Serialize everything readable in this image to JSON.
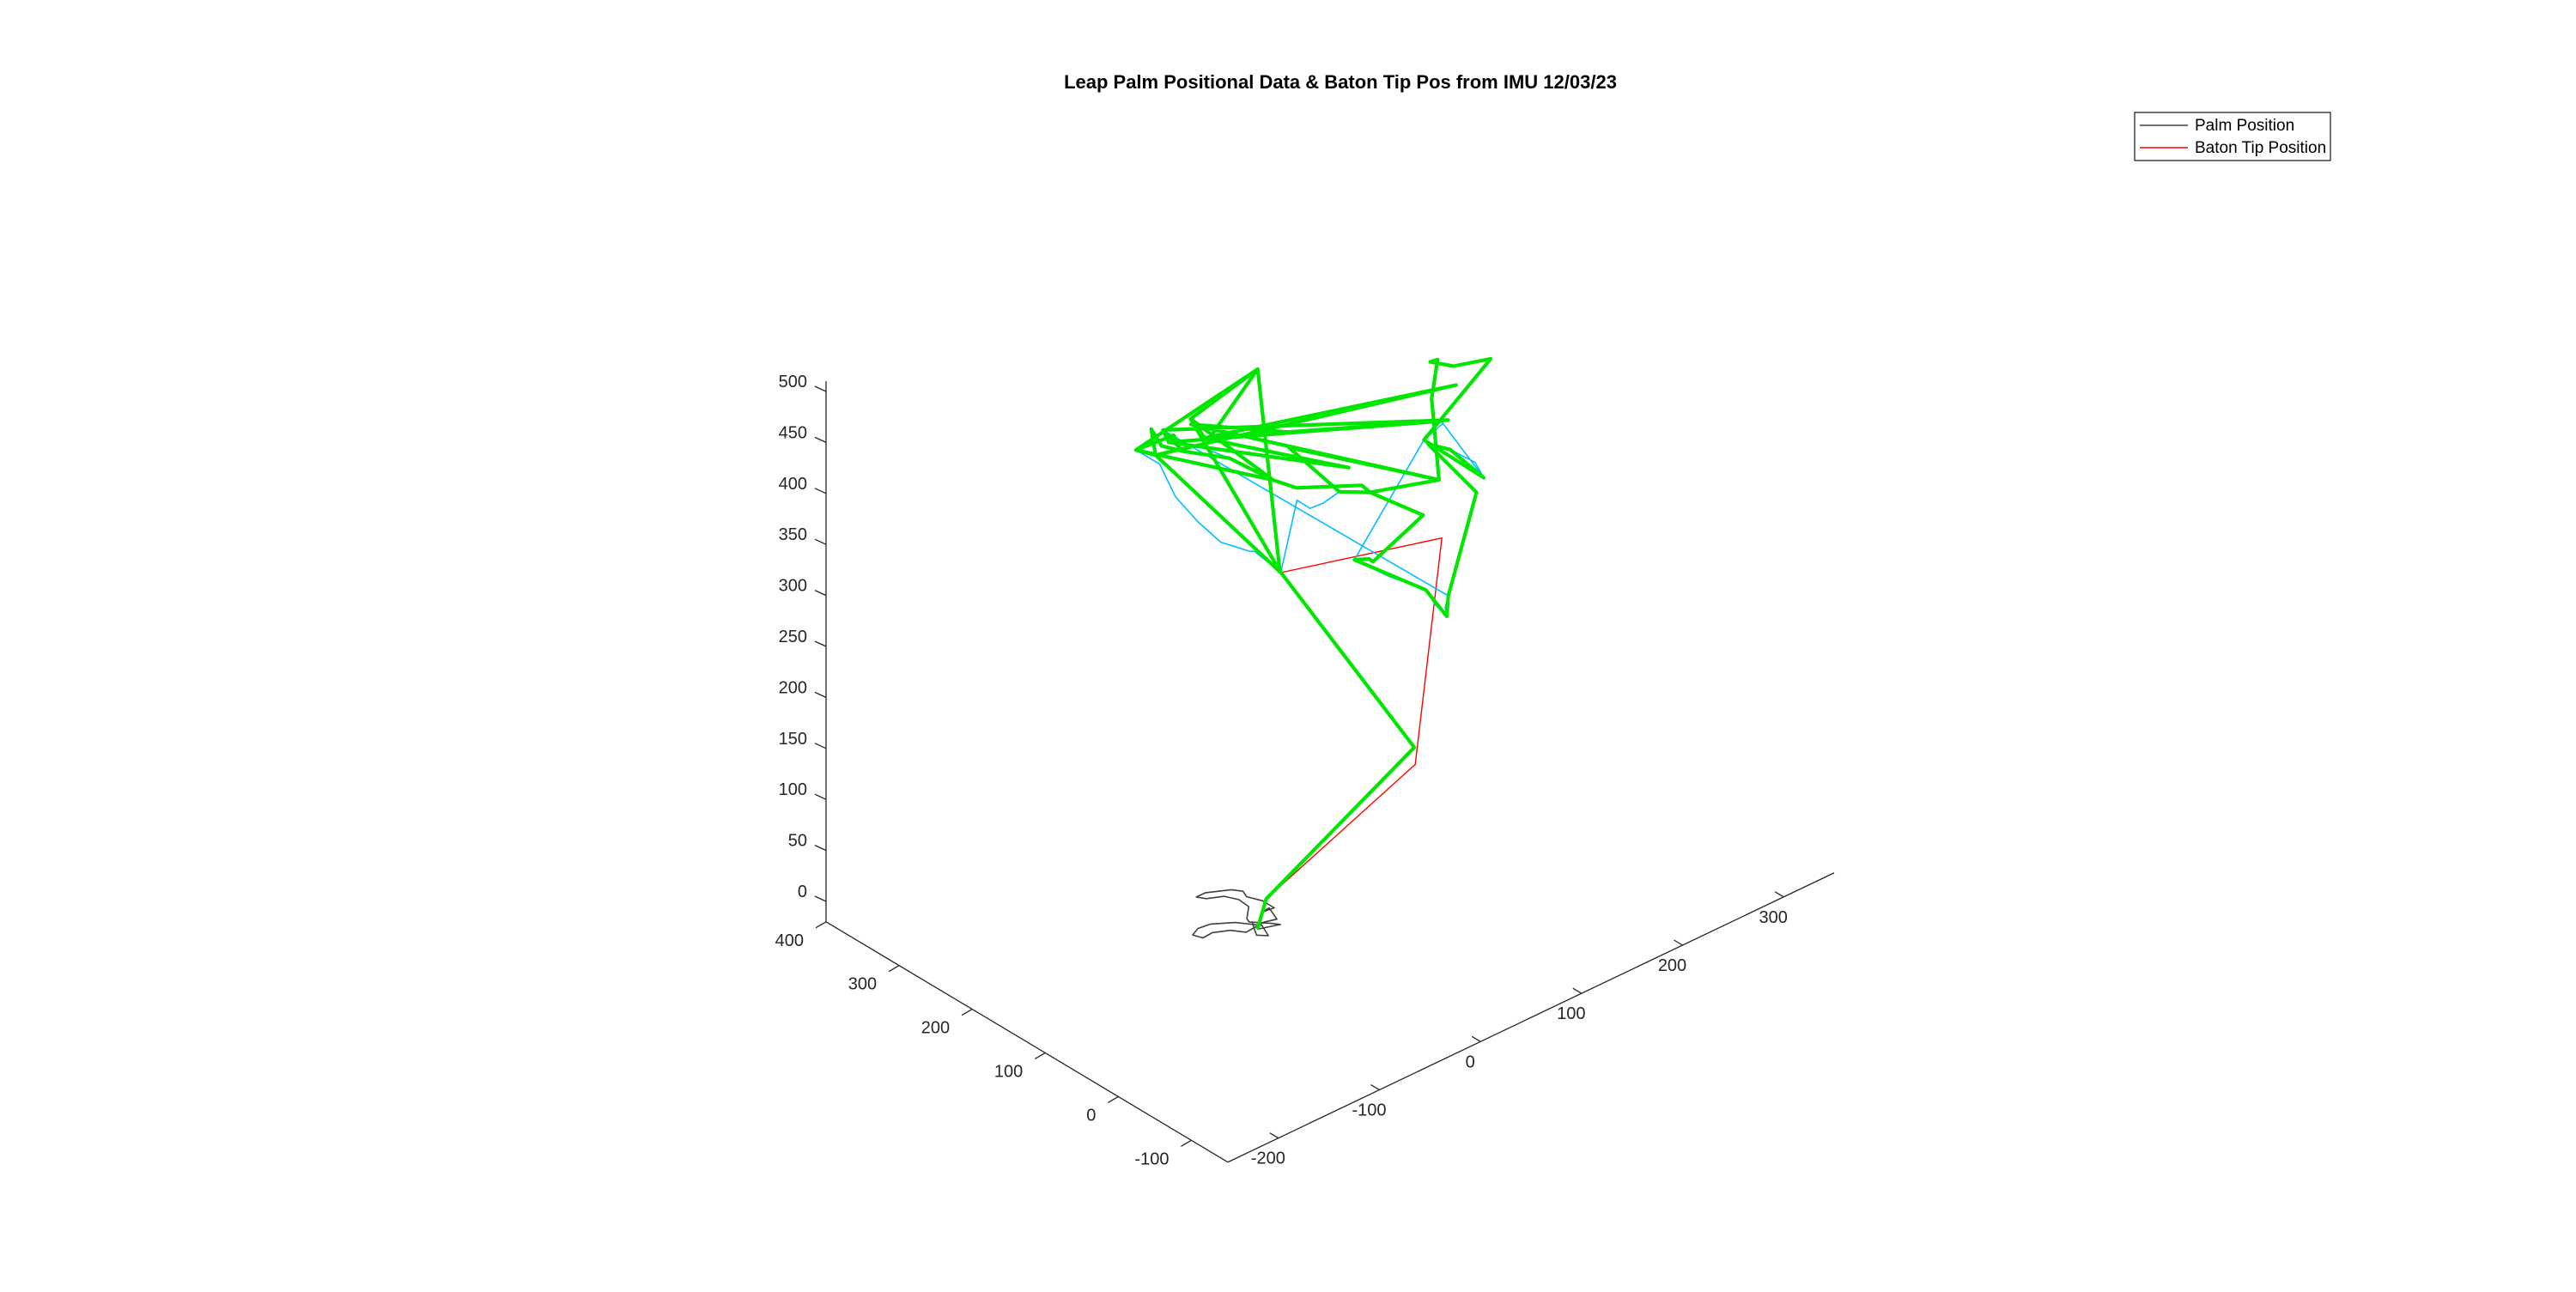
{
  "chart_data": {
    "type": "line",
    "title": "Leap Palm Positional Data & Baton Tip Pos from IMU 12/03/23",
    "xlabel": "",
    "ylabel": "",
    "zlabel": "",
    "legend": {
      "placement": "top-right",
      "entries": [
        {
          "name": "Palm Position",
          "color": "#404040"
        },
        {
          "name": "Baton Tip Position",
          "color": "#ff0000"
        }
      ]
    },
    "axes": {
      "x": {
        "range": [
          -250,
          350
        ],
        "ticks": [
          -200,
          -100,
          0,
          100,
          200,
          300
        ]
      },
      "y": {
        "range": [
          -150,
          400
        ],
        "ticks": [
          -100,
          0,
          100,
          200,
          300,
          400
        ]
      },
      "z": {
        "range": [
          -20,
          510
        ],
        "ticks": [
          0,
          50,
          100,
          150,
          200,
          250,
          300,
          350,
          400,
          450,
          500
        ]
      }
    },
    "grid": false,
    "series": [
      {
        "name": "Palm Position",
        "color": "#404040",
        "points": [
          [
            -36,
            113,
            2
          ],
          [
            -46,
            93,
            2
          ],
          [
            -40,
            85,
            2
          ],
          [
            -34,
            102,
            2
          ],
          [
            -46,
            122,
            2
          ],
          [
            -61,
            135,
            2
          ],
          [
            -72,
            137,
            2
          ],
          [
            -81,
            132,
            2
          ],
          [
            -78,
            122,
            2
          ],
          [
            -68,
            123,
            2
          ],
          [
            -56,
            115,
            2
          ],
          [
            -49,
            103,
            2
          ],
          [
            -30,
            105,
            2
          ],
          [
            -20,
            101,
            2
          ],
          [
            -14,
            120,
            2
          ],
          [
            -21,
            119,
            2
          ],
          [
            -11,
            117,
            2
          ],
          [
            -11,
            133,
            2
          ],
          [
            -16,
            148,
            2
          ],
          [
            -13,
            157,
            2
          ],
          [
            -18,
            166,
            2
          ],
          [
            -35,
            178,
            2
          ],
          [
            -44,
            178,
            2
          ],
          [
            -40,
            170,
            2
          ],
          [
            -28,
            162,
            2
          ],
          [
            -23,
            149,
            2
          ],
          [
            -24,
            134,
            2
          ],
          [
            -36,
            120,
            2
          ],
          [
            -38,
            114,
            2
          ],
          [
            -27,
            99,
            2
          ],
          [
            -23,
            92,
            2
          ],
          [
            -40,
            100,
            2
          ]
        ]
      },
      {
        "name": "Baton Tip Position",
        "color": "#ff0000",
        "points": [
          [
            -40,
            100,
            2
          ],
          [
            -27,
            106,
            23
          ],
          [
            54,
            14,
            156
          ],
          [
            63,
            -10,
            384
          ],
          [
            -19,
            97,
            343
          ],
          [
            -5,
            148,
            514
          ],
          [
            -36,
            197,
            459
          ],
          [
            -27,
            190,
            439
          ],
          [
            -42,
            164,
            456
          ],
          [
            54,
            105,
            408
          ],
          [
            -49,
            209,
            437
          ],
          [
            -38,
            232,
            434
          ],
          [
            -47,
            197,
            436
          ],
          [
            -36,
            220,
            433
          ],
          [
            -62,
            236,
            424
          ],
          [
            -54,
            220,
            422
          ],
          [
            -67,
            208,
            459
          ],
          [
            -77,
            180,
            459
          ],
          [
            -55,
            181,
            443
          ],
          [
            -33,
            148,
            440
          ],
          [
            -15,
            113,
            425
          ],
          [
            0,
            102,
            415
          ],
          [
            43,
            72,
            410
          ],
          [
            57,
            80,
            393
          ],
          [
            36,
            93,
            398
          ],
          [
            18,
            137,
            431
          ],
          [
            100,
            45,
            400
          ],
          [
            118,
            80,
            456
          ],
          [
            147,
            112,
            467
          ],
          [
            152,
            129,
            455
          ],
          [
            175,
            129,
            440
          ],
          [
            222,
            143,
            419
          ],
          [
            119,
            92,
            410
          ],
          [
            166,
            75,
            358
          ],
          [
            119,
            56,
            416
          ],
          [
            95,
            53,
            434
          ],
          [
            111,
            9,
            398
          ],
          [
            81,
            6,
            312
          ],
          [
            65,
            -14,
            308
          ],
          [
            58,
            5,
            329
          ],
          [
            22,
            53,
            355
          ],
          [
            30,
            44,
            356
          ],
          [
            39,
            51,
            346
          ],
          [
            85,
            46,
            372
          ],
          [
            57,
            80,
            393
          ],
          [
            100,
            45,
            400
          ]
        ]
      },
      {
        "name": "",
        "color": "#00e600",
        "points": [
          [
            -40,
            100,
            2
          ],
          [
            -27,
            106,
            23
          ],
          [
            56,
            18,
            170
          ],
          [
            -20,
            97,
            345
          ],
          [
            -5,
            148,
            514
          ],
          [
            -36,
            197,
            459
          ],
          [
            -27,
            190,
            439
          ],
          [
            -42,
            164,
            456
          ],
          [
            54,
            105,
            408
          ],
          [
            -49,
            209,
            437
          ],
          [
            -38,
            232,
            434
          ],
          [
            -47,
            197,
            436
          ],
          [
            -36,
            220,
            433
          ],
          [
            -62,
            236,
            424
          ],
          [
            -54,
            220,
            422
          ],
          [
            -67,
            208,
            459
          ],
          [
            -77,
            180,
            459
          ],
          [
            -55,
            181,
            443
          ],
          [
            -33,
            148,
            440
          ],
          [
            -15,
            113,
            425
          ],
          [
            0,
            102,
            415
          ],
          [
            43,
            72,
            410
          ],
          [
            57,
            80,
            393
          ],
          [
            36,
            93,
            398
          ],
          [
            18,
            137,
            431
          ],
          [
            100,
            45,
            400
          ],
          [
            118,
            80,
            456
          ],
          [
            147,
            112,
            467
          ],
          [
            152,
            129,
            455
          ],
          [
            175,
            129,
            440
          ],
          [
            222,
            143,
            419
          ],
          [
            119,
            92,
            410
          ],
          [
            166,
            75,
            358
          ],
          [
            119,
            56,
            416
          ],
          [
            95,
            53,
            434
          ],
          [
            111,
            9,
            398
          ],
          [
            81,
            6,
            312
          ],
          [
            65,
            -14,
            308
          ],
          [
            58,
            5,
            329
          ],
          [
            22,
            53,
            355
          ],
          [
            30,
            44,
            356
          ],
          [
            39,
            51,
            346
          ],
          [
            85,
            46,
            372
          ],
          [
            57,
            80,
            393
          ],
          [
            100,
            45,
            400
          ],
          [
            -40,
            191,
            458
          ],
          [
            20,
            137,
            445
          ],
          [
            -49,
            209,
            437
          ],
          [
            113,
            58,
            446
          ],
          [
            -27,
            190,
            439
          ],
          [
            161,
            106,
            438
          ],
          [
            -54,
            220,
            422
          ],
          [
            -19,
            97,
            343
          ],
          [
            -36,
            197,
            459
          ],
          [
            -15,
            113,
            425
          ],
          [
            -62,
            236,
            424
          ],
          [
            -5,
            148,
            514
          ],
          [
            -42,
            164,
            456
          ],
          [
            130,
            74,
            432
          ],
          [
            -38,
            232,
            434
          ]
        ]
      },
      {
        "name": "",
        "color": "#00bfff",
        "points": [
          [
            -55,
            181,
            443
          ],
          [
            -47,
            175,
            448
          ],
          [
            -33,
            148,
            440
          ],
          [
            -24,
            140,
            432
          ],
          [
            -15,
            113,
            425
          ],
          [
            -8,
            108,
            420
          ],
          [
            0,
            102,
            415
          ],
          [
            43,
            72,
            410
          ],
          [
            50,
            74,
            402
          ],
          [
            57,
            80,
            393
          ],
          [
            48,
            86,
            396
          ],
          [
            36,
            93,
            398
          ],
          [
            22,
            96,
            392
          ],
          [
            12,
            100,
            390
          ],
          [
            5,
            108,
            398
          ],
          [
            -19,
            97,
            343
          ],
          [
            -25,
            105,
            352
          ],
          [
            -30,
            118,
            360
          ],
          [
            -28,
            128,
            355
          ],
          [
            -40,
            150,
            360
          ],
          [
            -48,
            170,
            375
          ],
          [
            -56,
            190,
            395
          ],
          [
            -58,
            209,
            420
          ],
          [
            -62,
            236,
            424
          ],
          [
            -50,
            230,
            428
          ],
          [
            -38,
            232,
            434
          ],
          [
            81,
            6,
            312
          ],
          [
            75,
            2,
            305
          ],
          [
            65,
            -14,
            308
          ],
          [
            60,
            -5,
            318
          ],
          [
            58,
            5,
            329
          ],
          [
            40,
            30,
            340
          ],
          [
            22,
            53,
            355
          ],
          [
            119,
            92,
            410
          ],
          [
            140,
            95,
            415
          ],
          [
            166,
            75,
            358
          ],
          [
            150,
            65,
            385
          ],
          [
            119,
            56,
            416
          ]
        ]
      }
    ]
  }
}
